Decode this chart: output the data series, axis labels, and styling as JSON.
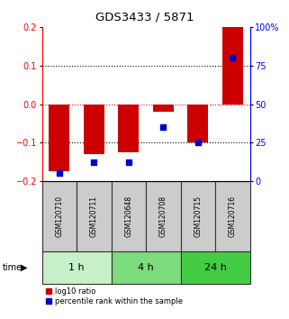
{
  "title": "GDS3433 / 5871",
  "samples": [
    "GSM120710",
    "GSM120711",
    "GSM120648",
    "GSM120708",
    "GSM120715",
    "GSM120716"
  ],
  "log10_ratio": [
    -0.175,
    -0.13,
    -0.125,
    -0.02,
    -0.1,
    0.2
  ],
  "percentile_rank": [
    5,
    12,
    12,
    35,
    25,
    80
  ],
  "time_groups": [
    {
      "label": "1 h",
      "start": 0,
      "end": 2,
      "color": "#c8f0c8"
    },
    {
      "label": "4 h",
      "start": 2,
      "end": 4,
      "color": "#7ddc7d"
    },
    {
      "label": "24 h",
      "start": 4,
      "end": 6,
      "color": "#44cc44"
    }
  ],
  "bar_color": "#cc0000",
  "dot_color": "#0000cc",
  "ylim_left": [
    -0.2,
    0.2
  ],
  "ylim_right": [
    0,
    100
  ],
  "yticks_left": [
    -0.2,
    -0.1,
    0,
    0.1,
    0.2
  ],
  "yticks_right": [
    0,
    25,
    50,
    75,
    100
  ],
  "ytick_labels_right": [
    "0",
    "25",
    "50",
    "75",
    "100%"
  ],
  "bar_width": 0.6,
  "sample_box_color": "#cccccc",
  "sample_box_edge": "#333333",
  "legend_red_label": "log10 ratio",
  "legend_blue_label": "percentile rank within the sample",
  "background_color": "#ffffff"
}
